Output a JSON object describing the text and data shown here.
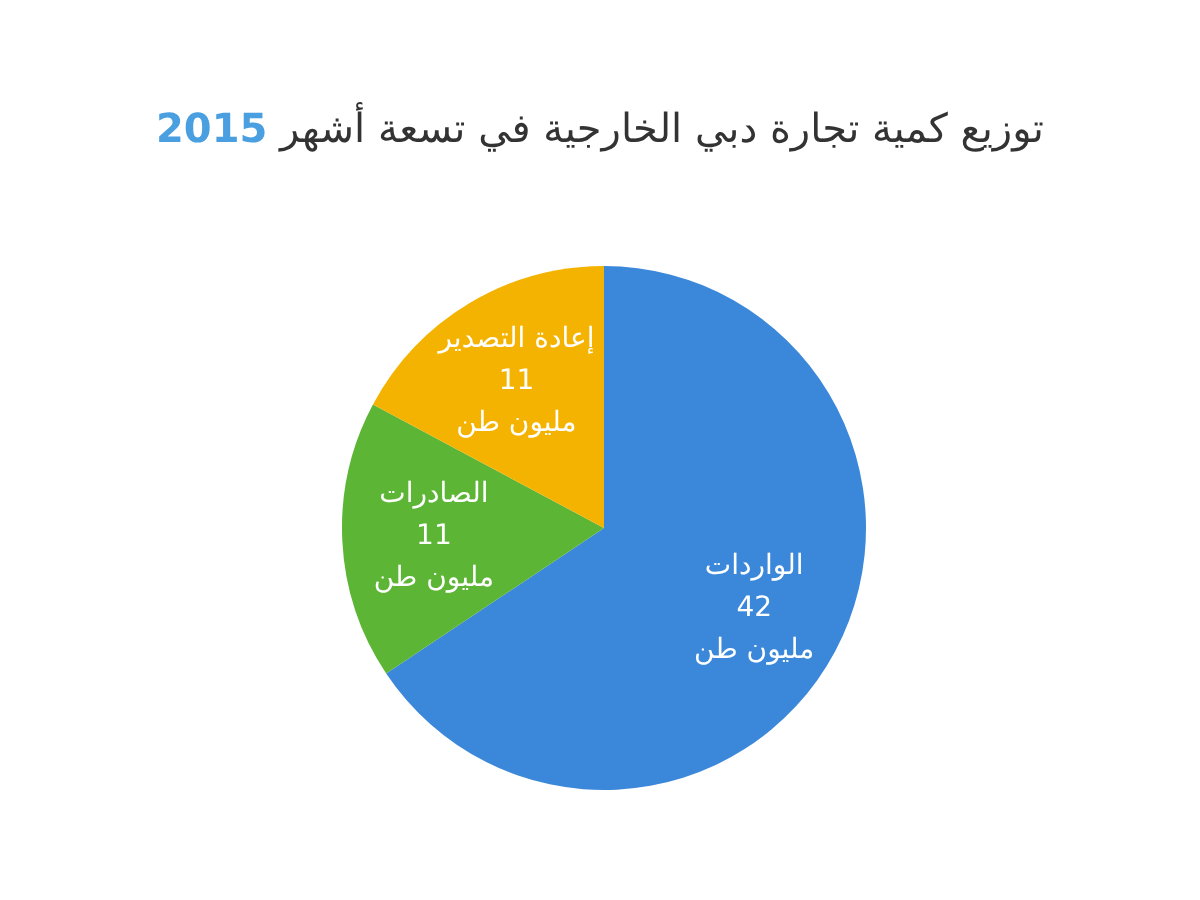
{
  "chart_data": {
    "type": "pie",
    "title": "توزيع كمية تجارة دبي الخارجية في تسعة أشهر 2015",
    "categories": [
      "الواردات",
      "الصادرات",
      "إعادة التصدير"
    ],
    "values": [
      42,
      11,
      11
    ],
    "colors": [
      "#3b87d9",
      "#5cb534",
      "#f5b301"
    ],
    "value_labels": [
      "42\nمليون طن",
      "11\nمليون طن",
      "11\nمليون طن"
    ]
  }
}
